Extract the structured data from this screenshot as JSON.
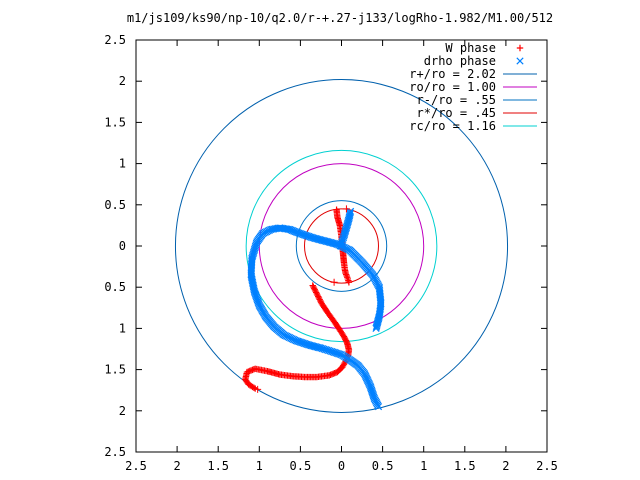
{
  "chart_data": {
    "type": "scatter",
    "title": "m1/js109/ks90/np-10/q2.0/r-+.27-j133/logRho-1.982/M1.00/512",
    "xlabel": "",
    "ylabel": "",
    "xlim": [
      2.5,
      -2.5
    ],
    "ylim": [
      -2.5,
      2.5
    ],
    "x_ticks": [
      "2.5",
      "2",
      "1.5",
      "1",
      "0.5",
      "0",
      "0.5",
      "1",
      "1.5",
      "2",
      "2.5"
    ],
    "y_ticks": [
      "2.5",
      "2",
      "1.5",
      "1",
      "0.5",
      "0",
      "0.5",
      "1",
      "1.5",
      "2",
      "2.5"
    ],
    "grid": false,
    "legend_position": "top-right",
    "point_series": [
      {
        "name": "W phase",
        "marker": "plus",
        "color": "#ff0000",
        "segments": [
          {
            "x": [
              0.06,
              0.05,
              0.02,
              0.0,
              -0.01,
              -0.02,
              -0.03,
              -0.04,
              -0.05,
              -0.07,
              -0.09
            ],
            "y": [
              0.44,
              0.35,
              0.25,
              0.12,
              0.0,
              -0.1,
              -0.2,
              -0.28,
              -0.33,
              -0.38,
              -0.44
            ]
          },
          {
            "x": [
              0.35,
              0.3,
              0.24,
              0.16,
              0.08,
              0.02,
              -0.03,
              -0.07,
              -0.09,
              -0.08,
              -0.05,
              -0.01,
              0.05,
              0.15,
              0.3,
              0.45,
              0.6,
              0.75,
              0.9,
              1.05,
              1.15,
              1.17,
              1.13,
              1.05
            ],
            "y": [
              -0.48,
              -0.58,
              -0.7,
              -0.82,
              -0.93,
              -1.02,
              -1.1,
              -1.18,
              -1.26,
              -1.33,
              -1.4,
              -1.47,
              -1.53,
              -1.57,
              -1.59,
              -1.59,
              -1.58,
              -1.56,
              -1.52,
              -1.49,
              -1.53,
              -1.62,
              -1.68,
              -1.73
            ]
          }
        ]
      },
      {
        "name": "drho phase",
        "marker": "cross",
        "color": "#0080ff",
        "segments": [
          {
            "x": [
              -0.11,
              -0.09,
              -0.07,
              -0.05,
              -0.03,
              -0.01,
              0.01
            ],
            "y": [
              0.42,
              0.33,
              0.26,
              0.19,
              0.12,
              0.06,
              0.0
            ]
          },
          {
            "x": [
              -0.45,
              -0.4,
              -0.35,
              -0.28,
              -0.2,
              -0.1,
              0.0,
              0.12,
              0.25,
              0.4,
              0.55,
              0.7,
              0.82,
              0.92,
              1.0,
              1.06,
              1.1,
              1.09,
              1.03,
              0.96,
              0.86,
              0.75,
              0.63,
              0.5,
              0.35,
              0.2,
              0.05,
              -0.1,
              -0.25,
              -0.38,
              -0.46,
              -0.48,
              -0.46,
              -0.42
            ],
            "y": [
              -1.95,
              -1.85,
              -1.7,
              -1.55,
              -1.45,
              -1.38,
              -1.32,
              -1.28,
              -1.24,
              -1.2,
              -1.15,
              -1.08,
              -0.98,
              -0.86,
              -0.72,
              -0.55,
              -0.35,
              -0.15,
              0.05,
              0.15,
              0.2,
              0.22,
              0.2,
              0.15,
              0.1,
              0.06,
              0.02,
              -0.05,
              -0.2,
              -0.35,
              -0.5,
              -0.7,
              -0.85,
              -1.0
            ]
          }
        ]
      }
    ],
    "circle_series": [
      {
        "name": "r+/ro = 2.02",
        "radius": 2.02,
        "color": "#0060ad"
      },
      {
        "name": "ro/ro = 1.00",
        "radius": 1.0,
        "color": "#c000c0"
      },
      {
        "name": "r-/ro = .55",
        "radius": 0.55,
        "color": "#0070c0"
      },
      {
        "name": "r*/ro = .45",
        "radius": 0.45,
        "color": "#e00000"
      },
      {
        "name": "rc/ro = 1.16",
        "radius": 1.16,
        "color": "#00d0d0"
      }
    ],
    "endpoint_markers": [
      {
        "x": -0.06,
        "y": 0.45,
        "color": "#ff0000"
      },
      {
        "x": 0.09,
        "y": -0.44,
        "color": "#ff0000"
      },
      {
        "x": 1.02,
        "y": -1.74,
        "color": "#ff0000"
      }
    ]
  }
}
